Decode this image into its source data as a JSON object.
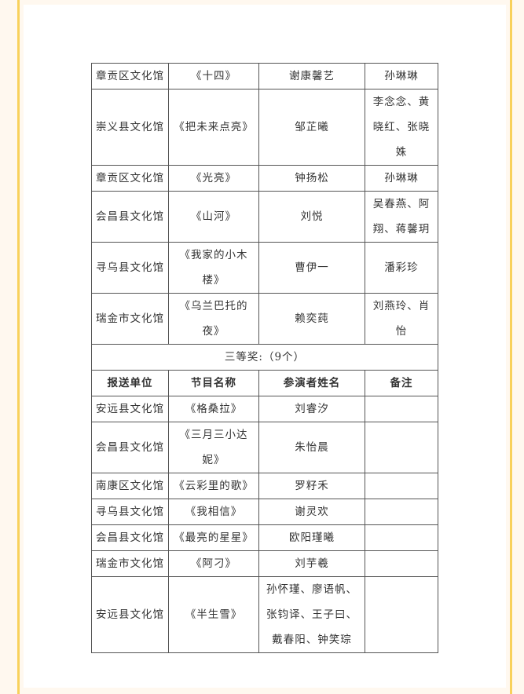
{
  "rows_upper": [
    {
      "unit": "章贡区文化馆",
      "program": "《十四》",
      "performers": "谢康馨艺",
      "note": "孙琳琳"
    },
    {
      "unit": "崇义县文化馆",
      "program": "《把未来点亮》",
      "performers": "邹芷曦",
      "note": "李念念、黄晓红、张晓姝"
    },
    {
      "unit": "章贡区文化馆",
      "program": "《光亮》",
      "performers": "钟扬松",
      "note": "孙琳琳"
    },
    {
      "unit": "会昌县文化馆",
      "program": "《山河》",
      "performers": "刘悦",
      "note": "吴春燕、阿翔、蒋馨玥"
    },
    {
      "unit": "寻乌县文化馆",
      "program": "《我家的小木楼》",
      "performers": "曹伊一",
      "note": "潘彩珍"
    },
    {
      "unit": "瑞金市文化馆",
      "program": "《乌兰巴托的夜》",
      "performers": "赖奕莼",
      "note": "刘燕玲、肖怡"
    }
  ],
  "third_prize": {
    "title": "三等奖:（9个）"
  },
  "headers": {
    "unit": "报送单位",
    "program": "节目名称",
    "performers": "参演者姓名",
    "note": "备注"
  },
  "rows_lower": [
    {
      "unit": "安远县文化馆",
      "program": "《格桑拉》",
      "performers": "刘睿汐",
      "note": ""
    },
    {
      "unit": "会昌县文化馆",
      "program": "《三月三小达妮》",
      "performers": "朱怡晨",
      "note": ""
    },
    {
      "unit": "南康区文化馆",
      "program": "《云彩里的歌》",
      "performers": "罗籽禾",
      "note": ""
    },
    {
      "unit": "寻乌县文化馆",
      "program": "《我相信》",
      "performers": "谢灵欢",
      "note": ""
    },
    {
      "unit": "会昌县文化馆",
      "program": "《最亮的星星》",
      "performers": "欧阳瑾曦",
      "note": ""
    },
    {
      "unit": "瑞金市文化馆",
      "program": "《阿刁》",
      "performers": "刘芋羲",
      "note": ""
    },
    {
      "unit": "安远县文化馆",
      "program": "《半生雪》",
      "performers": "孙怀瑾、廖语帆、张钧译、王子曰、戴春阳、钟笑琮",
      "note": ""
    }
  ],
  "colors": {
    "border_accent": "#f8d15c",
    "page_bg": "#fff8ef"
  }
}
